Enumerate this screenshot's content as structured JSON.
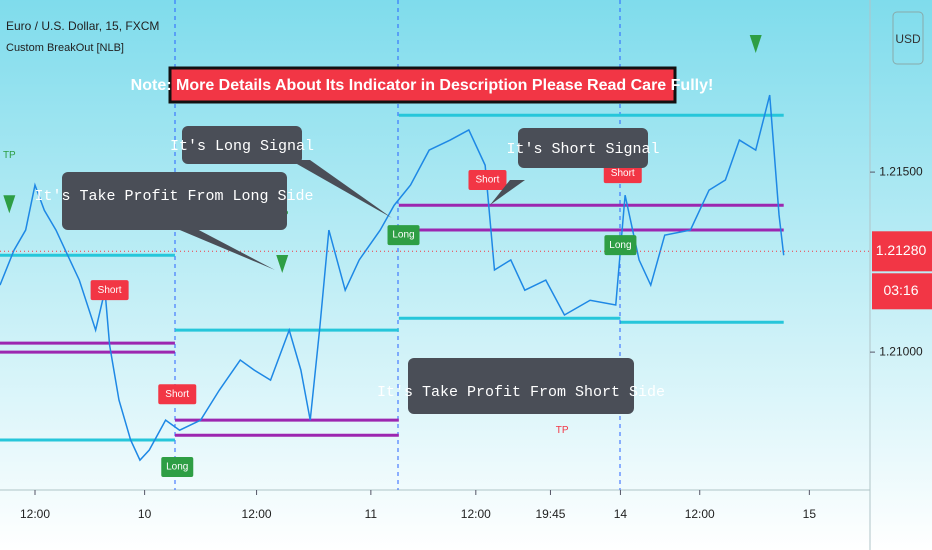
{
  "chart_data": {
    "type": "line",
    "title": "Euro / U.S. Dollar, 15, FXCM",
    "subtitle": "Custom BreakOut [NLB]",
    "currency": "USD",
    "color": "#1e88e5",
    "x": [
      0,
      6,
      11,
      15,
      19,
      24,
      28,
      34,
      41,
      45,
      47,
      51,
      56,
      60,
      64,
      71,
      77,
      86,
      94,
      103,
      109,
      116,
      124,
      129,
      133,
      137,
      141,
      148,
      154,
      163,
      169,
      176,
      184,
      193,
      201,
      208,
      212,
      219,
      225,
      234,
      242,
      253,
      264,
      268,
      274,
      279,
      285,
      296,
      304,
      311,
      317,
      324,
      330,
      334,
      336
    ],
    "values": [
      1.21186,
      1.21283,
      1.21339,
      1.21464,
      1.21394,
      1.21339,
      1.21283,
      1.212,
      1.21061,
      1.21172,
      1.21019,
      1.20867,
      1.20756,
      1.207,
      1.20728,
      1.20811,
      1.20783,
      1.20811,
      1.20894,
      1.20978,
      1.2095,
      1.20922,
      1.21061,
      1.2095,
      1.20811,
      1.21061,
      1.21339,
      1.21172,
      1.21256,
      1.21339,
      1.21408,
      1.21464,
      1.21561,
      1.21589,
      1.21617,
      1.21519,
      1.21228,
      1.21256,
      1.21172,
      1.212,
      1.21103,
      1.21144,
      1.21131,
      1.21436,
      1.21256,
      1.21186,
      1.21325,
      1.21339,
      1.2145,
      1.21478,
      1.21589,
      1.21561,
      1.21714,
      1.21381,
      1.21269
    ],
    "xlim": [
      0,
      373
    ],
    "xticks": [
      {
        "value": 15,
        "label": "12:00"
      },
      {
        "value": 62,
        "label": "10"
      },
      {
        "value": 110,
        "label": "12:00"
      },
      {
        "value": 159,
        "label": "11"
      },
      {
        "value": 204,
        "label": "12:00"
      },
      {
        "value": 236,
        "label": "19:45"
      },
      {
        "value": 266,
        "label": "14"
      },
      {
        "value": 300,
        "label": "12:00"
      },
      {
        "value": 347,
        "label": "15"
      }
    ],
    "ylim": [
      1.20617,
      1.21978
    ],
    "yticks": [
      {
        "value": 1.21,
        "label": "1.21000"
      },
      {
        "value": 1.215,
        "label": "1.21500"
      }
    ],
    "last_price": {
      "value": 1.2128,
      "label": "1.21280"
    },
    "countdown": "03:16",
    "levels": [
      {
        "x": [
          0,
          75
        ],
        "value": 1.21269,
        "color": "#26c6da"
      },
      {
        "x": [
          0,
          75
        ],
        "value": 1.21025,
        "color": "#9c27b0"
      },
      {
        "x": [
          0,
          75
        ],
        "value": 1.21,
        "color": "#9c27b0"
      },
      {
        "x": [
          0,
          75
        ],
        "value": 1.20756,
        "color": "#26c6da"
      },
      {
        "x": [
          75,
          171
        ],
        "value": 1.21061,
        "color": "#26c6da"
      },
      {
        "x": [
          75,
          171
        ],
        "value": 1.20811,
        "color": "#9c27b0"
      },
      {
        "x": [
          75,
          171
        ],
        "value": 1.20769,
        "color": "#9c27b0"
      },
      {
        "x": [
          171,
          336
        ],
        "value": 1.21658,
        "color": "#26c6da"
      },
      {
        "x": [
          171,
          336
        ],
        "value": 1.21408,
        "color": "#9c27b0"
      },
      {
        "x": [
          171,
          336
        ],
        "value": 1.21339,
        "color": "#9c27b0"
      },
      {
        "x": [
          171,
          266
        ],
        "value": 1.21094,
        "color": "#26c6da"
      },
      {
        "x": [
          266,
          336
        ],
        "value": 1.21083,
        "color": "#26c6da"
      }
    ],
    "signals": [
      {
        "label": "Short",
        "x": 47,
        "value": 1.21172,
        "color": "#f23645"
      },
      {
        "label": "Short",
        "x": 76,
        "value": 1.20883,
        "color": "#f23645"
      },
      {
        "label": "Long",
        "x": 76,
        "value": 1.20681,
        "color": "#2e9e44"
      },
      {
        "label": "Long",
        "x": 173,
        "value": 1.21325,
        "color": "#2e9e44"
      },
      {
        "label": "Short",
        "x": 209,
        "value": 1.21478,
        "color": "#f23645"
      },
      {
        "label": "Short",
        "x": 267,
        "value": 1.21497,
        "color": "#f23645"
      },
      {
        "label": "Long",
        "x": 266,
        "value": 1.21297,
        "color": "#2e9e44"
      },
      {
        "label": "TP",
        "x": 4,
        "value": 1.21408,
        "color": "#2e9e44"
      },
      {
        "label": "TP",
        "x": 121,
        "value": 1.21242,
        "color": "#2e9e44"
      },
      {
        "label": "TP",
        "x": 241,
        "value": 1.20922,
        "color": "#f23645"
      },
      {
        "label": "TP",
        "x": 324,
        "value": 1.21853,
        "color": "#2e9e44"
      }
    ],
    "notes": {
      "banner": "Note: More Details About Its Indicator in Description Please Read Care Fully!",
      "long_signal": "It's Long Signal",
      "short_signal": "It's Short Signal",
      "tp_long": "It's Take Profit From Long Side",
      "tp_short": "It's Take Profit From Short Side"
    }
  }
}
